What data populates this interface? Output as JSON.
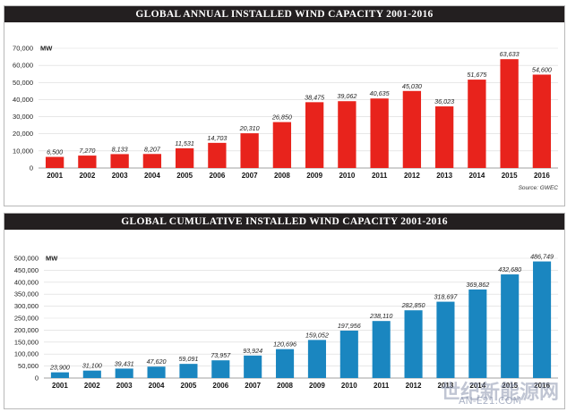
{
  "chart_data": [
    {
      "type": "bar",
      "title": "GLOBAL ANNUAL INSTALLED WIND CAPACITY 2001-2016",
      "ylabel": "MW",
      "ylim": [
        0,
        70000
      ],
      "yticks": [
        "0",
        "10,000",
        "20,000",
        "30,000",
        "40,000",
        "50,000",
        "60,000",
        "70,000"
      ],
      "ytick_values": [
        0,
        10000,
        20000,
        30000,
        40000,
        50000,
        60000,
        70000
      ],
      "categories": [
        "2001",
        "2002",
        "2003",
        "2004",
        "2005",
        "2006",
        "2007",
        "2008",
        "2009",
        "2010",
        "2011",
        "2012",
        "2013",
        "2014",
        "2015",
        "2016"
      ],
      "values": [
        6500,
        7270,
        8133,
        8207,
        11531,
        14703,
        20310,
        26850,
        38475,
        39062,
        40635,
        45030,
        36023,
        51675,
        63633,
        54600
      ],
      "value_labels": [
        "6,500",
        "7,270",
        "8,133",
        "8,207",
        "11,531",
        "14,703",
        "20,310",
        "26,850",
        "38,475",
        "39,062",
        "40,635",
        "45,030",
        "36,023",
        "51,675",
        "63,633",
        "54,600"
      ],
      "color": "#e8231c",
      "grid": true,
      "source": "Source: GWEC"
    },
    {
      "type": "bar",
      "title": "GLOBAL CUMULATIVE INSTALLED WIND CAPACITY 2001-2016",
      "ylabel": "MW",
      "ylim": [
        0,
        500000
      ],
      "yticks": [
        "0",
        "50,000",
        "100,000",
        "150,000",
        "200,000",
        "250,000",
        "300,000",
        "350,000",
        "400,000",
        "450,000",
        "500,000"
      ],
      "ytick_values": [
        0,
        50000,
        100000,
        150000,
        200000,
        250000,
        300000,
        350000,
        400000,
        450000,
        500000
      ],
      "categories": [
        "2001",
        "2002",
        "2003",
        "2004",
        "2005",
        "2006",
        "2007",
        "2008",
        "2009",
        "2010",
        "2011",
        "2012",
        "2013",
        "2014",
        "2015",
        "2016"
      ],
      "values": [
        23900,
        31100,
        39431,
        47620,
        59091,
        73957,
        93924,
        120696,
        159052,
        197956,
        238110,
        282850,
        318697,
        369862,
        432680,
        486749
      ],
      "value_labels": [
        "23,900",
        "31,100",
        "39,431",
        "47,620",
        "59,091",
        "73,957",
        "93,924",
        "120,696",
        "159,052",
        "197,956",
        "238,110",
        "282,850",
        "318,697",
        "369,862",
        "432,680",
        "486,749"
      ],
      "color": "#1a86c0",
      "grid": true
    }
  ],
  "watermark": {
    "text": "世纪新能源网",
    "sub": "AN-E21.COM"
  }
}
